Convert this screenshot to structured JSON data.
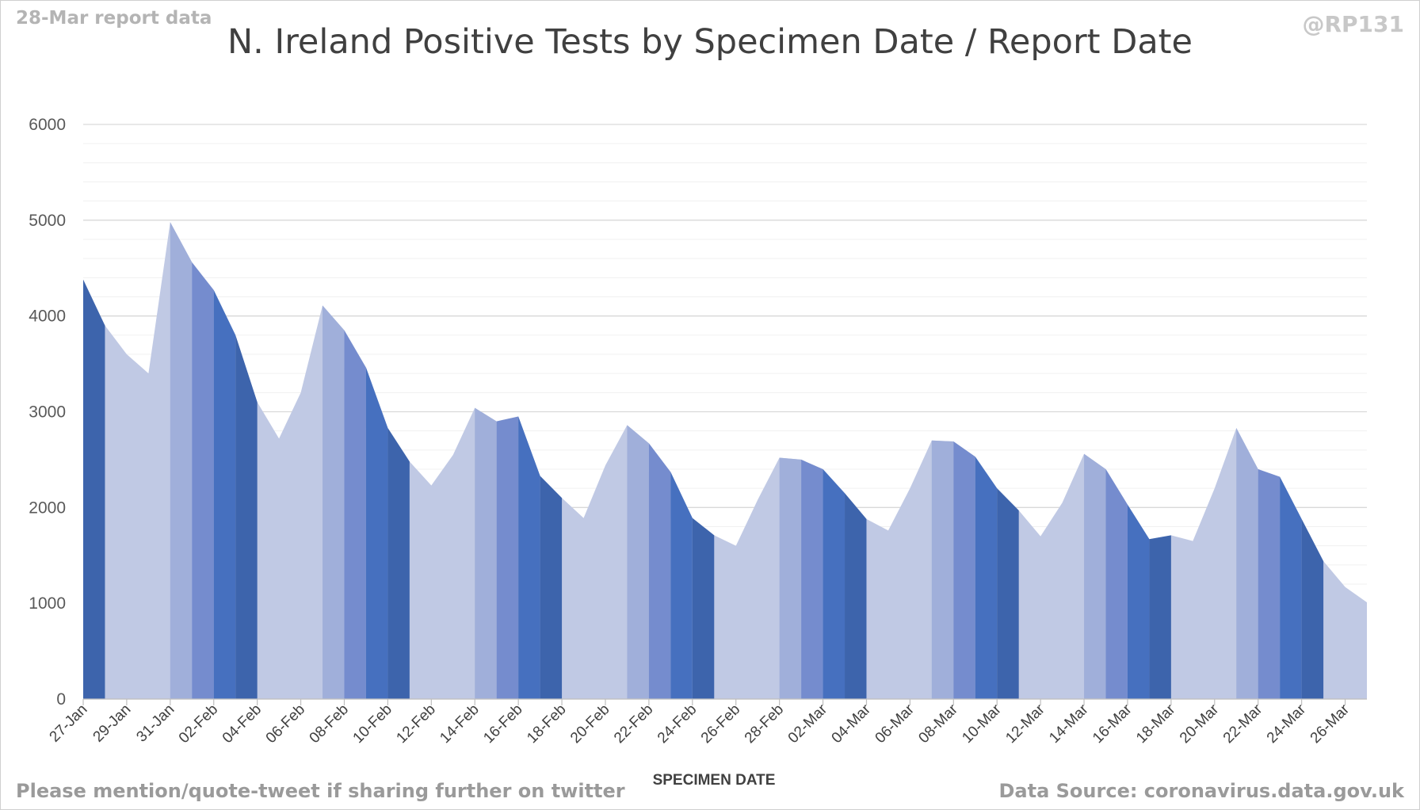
{
  "header": {
    "report_label": "28-Mar report data",
    "title": "N. Ireland Positive Tests by Specimen Date / Report Date",
    "handle": "@RP131"
  },
  "footer": {
    "left_text": "Please mention/quote-tweet if sharing further on twitter",
    "right_text": "Data Source: coronavirus.data.gov.uk"
  },
  "chart_data": {
    "type": "area",
    "title": "N. Ireland Positive Tests by Specimen Date / Report Date",
    "xlabel": "SPECIMEN DATE",
    "ylabel": "",
    "ylim": [
      0,
      6000
    ],
    "yticks": [
      0,
      1000,
      2000,
      3000,
      4000,
      5000,
      6000
    ],
    "grid": true,
    "legend": "none",
    "x_tick_labels": [
      "27-Jan",
      "29-Jan",
      "31-Jan",
      "02-Feb",
      "04-Feb",
      "06-Feb",
      "08-Feb",
      "10-Feb",
      "12-Feb",
      "14-Feb",
      "16-Feb",
      "18-Feb",
      "20-Feb",
      "22-Feb",
      "24-Feb",
      "26-Feb",
      "28-Feb",
      "02-Mar",
      "04-Mar",
      "06-Mar",
      "08-Mar",
      "10-Mar",
      "12-Mar",
      "14-Mar",
      "16-Mar",
      "18-Mar",
      "20-Mar",
      "22-Mar",
      "24-Mar",
      "26-Mar"
    ],
    "x": [
      "27-Jan",
      "28-Jan",
      "29-Jan",
      "30-Jan",
      "31-Jan",
      "01-Feb",
      "02-Feb",
      "03-Feb",
      "04-Feb",
      "05-Feb",
      "06-Feb",
      "07-Feb",
      "08-Feb",
      "09-Feb",
      "10-Feb",
      "11-Feb",
      "12-Feb",
      "13-Feb",
      "14-Feb",
      "15-Feb",
      "16-Feb",
      "17-Feb",
      "18-Feb",
      "19-Feb",
      "20-Feb",
      "21-Feb",
      "22-Feb",
      "23-Feb",
      "24-Feb",
      "25-Feb",
      "26-Feb",
      "27-Feb",
      "28-Feb",
      "01-Mar",
      "02-Mar",
      "03-Mar",
      "04-Mar",
      "05-Mar",
      "06-Mar",
      "07-Mar",
      "08-Mar",
      "09-Mar",
      "10-Mar",
      "11-Mar",
      "12-Mar",
      "13-Mar",
      "14-Mar",
      "15-Mar",
      "16-Mar",
      "17-Mar",
      "18-Mar",
      "19-Mar",
      "20-Mar",
      "21-Mar",
      "22-Mar",
      "23-Mar",
      "24-Mar",
      "25-Mar",
      "26-Mar",
      "27-Mar"
    ],
    "totals": [
      4380,
      3900,
      3600,
      3400,
      4980,
      4560,
      4270,
      3800,
      3100,
      2720,
      3200,
      4110,
      3850,
      3460,
      2830,
      2480,
      2230,
      2550,
      3040,
      2900,
      2950,
      2330,
      2100,
      1890,
      2440,
      2860,
      2670,
      2370,
      1890,
      1710,
      1600,
      2080,
      2520,
      2500,
      2400,
      2150,
      1880,
      1760,
      2200,
      2700,
      2690,
      2530,
      2200,
      1970,
      1700,
      2050,
      2560,
      2400,
      2030,
      1670,
      1710,
      1650,
      2200,
      2830,
      2400,
      2320,
      1880,
      1440,
      1170,
      1010
    ],
    "layer_colors": [
      "#c0c9e4",
      "#9eaed9",
      "#7189cc",
      "#3f6cbd",
      "#365fa9"
    ]
  }
}
